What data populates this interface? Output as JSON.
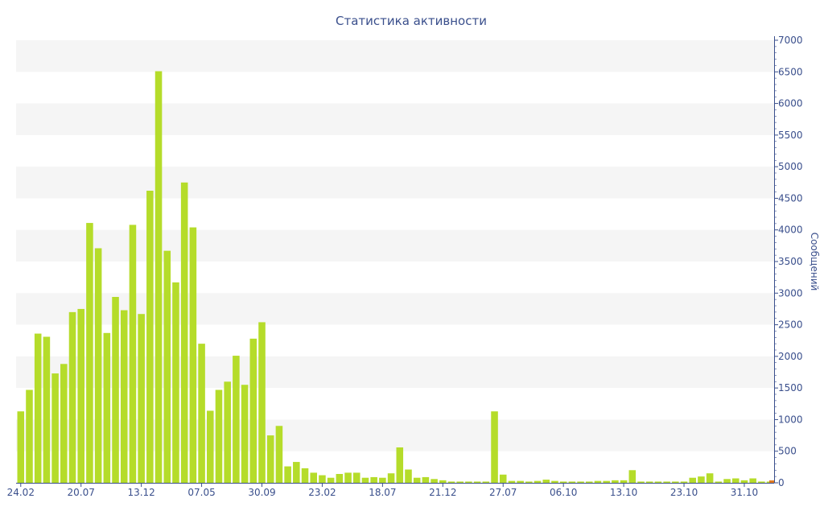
{
  "chart_data": {
    "type": "bar",
    "title": "Статистика активности",
    "ylabel": "Сообщений",
    "xlabel": "",
    "ylim": [
      0,
      7000
    ],
    "y_ticks": [
      0,
      500,
      1000,
      1500,
      2000,
      2500,
      3000,
      3500,
      4000,
      4500,
      5000,
      5500,
      6000,
      6500,
      7000
    ],
    "y_axis_side": "right",
    "x_tick_labels": [
      "24.02",
      "20.07",
      "13.12",
      "07.05",
      "30.09",
      "23.02",
      "18.07",
      "21.12",
      "27.07",
      "06.10",
      "13.10",
      "23.10",
      "31.10"
    ],
    "x_tick_bar_index": [
      0,
      7,
      14,
      21,
      28,
      35,
      42,
      49,
      56,
      63,
      70,
      77,
      84
    ],
    "grid": "alternating horizontal bands",
    "colors": {
      "bar": "#b5dc2a",
      "band": "#f5f5f5",
      "axis": "#3a4f8c",
      "title": "#3a4f8c",
      "marker": "#e07a20"
    },
    "values": [
      1130,
      1470,
      2360,
      2310,
      1730,
      1880,
      2700,
      2750,
      4110,
      3710,
      2370,
      2940,
      2730,
      4080,
      2670,
      4620,
      6510,
      3670,
      3170,
      4750,
      4040,
      2200,
      1140,
      1470,
      1600,
      2010,
      1550,
      2280,
      2540,
      750,
      900,
      260,
      330,
      230,
      160,
      120,
      80,
      140,
      160,
      160,
      80,
      90,
      80,
      150,
      560,
      210,
      80,
      90,
      60,
      40,
      20,
      20,
      20,
      20,
      20,
      1130,
      130,
      30,
      30,
      20,
      30,
      50,
      30,
      20,
      20,
      20,
      20,
      30,
      30,
      40,
      40,
      200,
      20,
      20,
      20,
      20,
      20,
      20,
      80,
      100,
      150,
      20,
      60,
      70,
      40,
      70,
      20,
      20
    ]
  }
}
